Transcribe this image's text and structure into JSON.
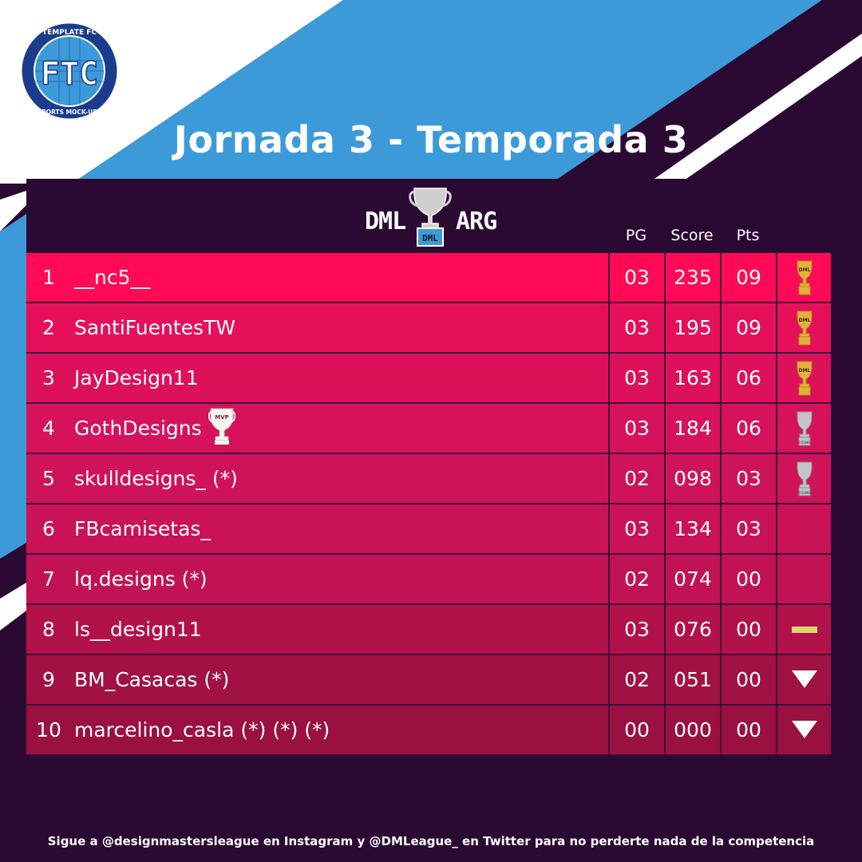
{
  "logo": {
    "top_text": "TEMPLATE FC",
    "bottom_text": "SPORTS MOCK-UPS",
    "monogram": "FTC"
  },
  "title": "Jornada 3 - Temporada 3",
  "brand": {
    "left": "DML",
    "right": "ARG",
    "cup_label": "DML"
  },
  "columns": {
    "pg": "PG",
    "score": "Score",
    "pts": "Pts"
  },
  "rows": [
    {
      "pos": "1",
      "name": "__nc5__",
      "pg": "03",
      "score": "235",
      "pts": "09",
      "icon": "gold-trophy-icon",
      "bg": "#ff0a56"
    },
    {
      "pos": "2",
      "name": "SantiFuentesTW",
      "pg": "03",
      "score": "195",
      "pts": "09",
      "icon": "gold-trophy-icon",
      "bg": "#e6105a"
    },
    {
      "pos": "3",
      "name": "JayDesign11",
      "pg": "03",
      "score": "163",
      "pts": "06",
      "icon": "gold-trophy-icon",
      "bg": "#dc115a"
    },
    {
      "pos": "4",
      "name": "GothDesigns",
      "pg": "03",
      "score": "184",
      "pts": "06",
      "icon": "silver-trophy-icon",
      "bg": "#d6125a",
      "mvp": "MVP"
    },
    {
      "pos": "5",
      "name": "skulldesigns_ (*)",
      "pg": "02",
      "score": "098",
      "pts": "03",
      "icon": "silver-trophy-icon",
      "bg": "#cf1358"
    },
    {
      "pos": "6",
      "name": "FBcamisetas_",
      "pg": "03",
      "score": "134",
      "pts": "03",
      "icon": "",
      "bg": "#c91356"
    },
    {
      "pos": "7",
      "name": "lq.designs (*)",
      "pg": "02",
      "score": "074",
      "pts": "00",
      "icon": "",
      "bg": "#c11353"
    },
    {
      "pos": "8",
      "name": "ls__design11",
      "pg": "03",
      "score": "076",
      "pts": "00",
      "icon": "neutral-dash-icon",
      "bg": "#b21249"
    },
    {
      "pos": "9",
      "name": "BM_Casacas (*)",
      "pg": "02",
      "score": "051",
      "pts": "00",
      "icon": "down-arrow-icon",
      "bg": "#a21143"
    },
    {
      "pos": "10",
      "name": "marcelino_casla (*) (*) (*)",
      "pg": "00",
      "score": "000",
      "pts": "00",
      "icon": "down-arrow-icon",
      "bg": "#9a1040"
    }
  ],
  "footer": "Sigue a @designmastersleague en Instagram y @DMLeague_ en Twitter para no perderte nada de la competencia",
  "colors": {
    "background": "#2a0a33",
    "stripe_blue": "#3d9ad9",
    "white": "#ffffff",
    "gold": "#e2b13c",
    "silver": "#b8b8b8",
    "dash": "#d9d96a"
  }
}
